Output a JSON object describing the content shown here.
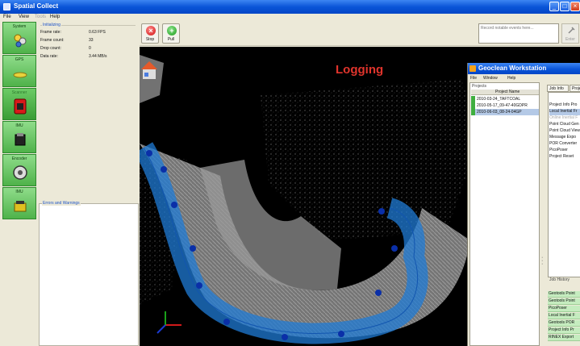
{
  "app": {
    "title": "Spatial Collect"
  },
  "menu": {
    "file": "File",
    "view": "View",
    "tools": "Tools",
    "help": "Help"
  },
  "sensors": [
    {
      "label": "System"
    },
    {
      "label": "GPS"
    },
    {
      "label": "Scanner"
    },
    {
      "label": "IMU"
    },
    {
      "label": "Encoder"
    },
    {
      "label": "IMU"
    }
  ],
  "status": {
    "group_title": "Initializing",
    "rows": [
      {
        "key": "Frame rate:",
        "value": "0.63 FPS"
      },
      {
        "key": "Frame count:",
        "value": "33"
      },
      {
        "key": "Drop count:",
        "value": "0"
      },
      {
        "key": "Data rate:",
        "value": "3.44 MB/s"
      }
    ],
    "errors_title": "Errors and Warnings"
  },
  "toolbar": {
    "stop_label": "Stop",
    "pull_label": "Pull",
    "event_placeholder": "Record notable events here...",
    "enter_label": "Enter"
  },
  "view": {
    "overlay_text": "Logging"
  },
  "geoclean": {
    "title": "Geoclean Workstation",
    "menu": {
      "file": "File",
      "window": "Window",
      "help": "Help"
    },
    "projects_label": "Projects",
    "project_column": "Project Name",
    "projects": [
      {
        "name": "2010-03-24_TAFTCOAL"
      },
      {
        "name": "2010-05-17_09-47-40GDPR"
      },
      {
        "name": "2010-06-03_08-24-04GP"
      }
    ],
    "tabs": [
      "Job Info",
      "Project"
    ],
    "jobs": [
      {
        "label": "Project Info Pro"
      },
      {
        "label": "Local Inertial Fr"
      },
      {
        "label": "Online Inertial F"
      },
      {
        "label": "Point Cloud Gen"
      },
      {
        "label": "Point Cloud View"
      },
      {
        "label": "Message Expo"
      },
      {
        "label": "POR Converter"
      },
      {
        "label": "PicoPoser"
      },
      {
        "label": "Project Reset"
      }
    ],
    "history_label": "Job History",
    "history": [
      {
        "label": "Geotools Point"
      },
      {
        "label": "Geotools Point"
      },
      {
        "label": "PicoPoser"
      },
      {
        "label": "Local Inertial F"
      },
      {
        "label": "Geotools POR"
      },
      {
        "label": "Project Info Pr"
      },
      {
        "label": "RINEX Export"
      }
    ]
  },
  "colors": {
    "title_bar": "#0a55d8",
    "sensor_green": "#4fb24a",
    "logging_red": "#e0342c",
    "trajectory_blue": "#1f7bd6",
    "trajectory_dot": "#0a2fa8"
  },
  "icons": [
    "system-icon",
    "gps-icon",
    "scanner-icon",
    "imu-icon",
    "encoder-icon",
    "imu2-icon",
    "stop-icon",
    "pull-icon",
    "enter-icon",
    "home-view-icon",
    "axes-icon"
  ]
}
